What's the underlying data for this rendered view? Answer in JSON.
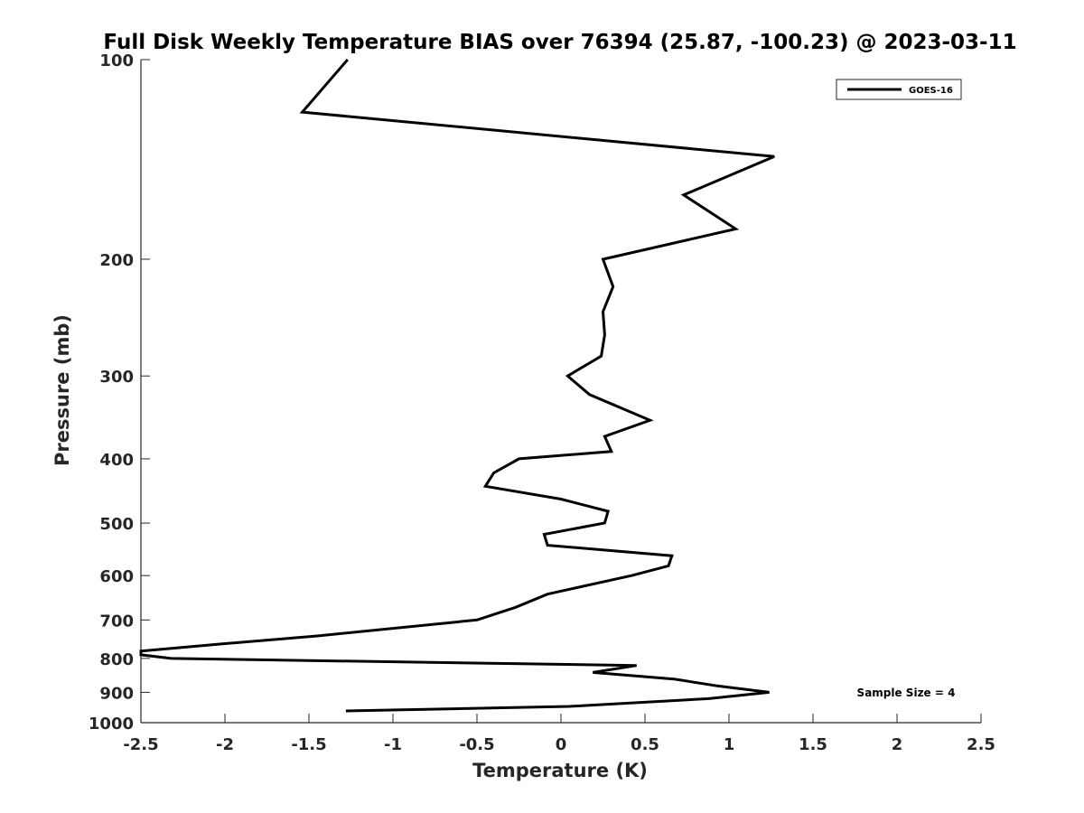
{
  "chart_data": {
    "type": "line",
    "title": "Full Disk Weekly Temperature BIAS over 76394 (25.87, -100.23) @ 2023-03-11",
    "xlabel": "Temperature (K)",
    "ylabel": "Pressure (mb)",
    "xlim": [
      -2.5,
      2.5
    ],
    "ylim": [
      100,
      1000
    ],
    "y_scale": "log",
    "y_reversed": true,
    "x_ticks": [
      -2.5,
      -2,
      -1.5,
      -1,
      -0.5,
      0,
      0.5,
      1,
      1.5,
      2,
      2.5
    ],
    "x_tick_labels": [
      "-2.5",
      "-2",
      "-1.5",
      "-1",
      "-0.5",
      "0",
      "0.5",
      "1",
      "1.5",
      "2",
      "2.5"
    ],
    "y_ticks": [
      100,
      200,
      300,
      400,
      500,
      600,
      700,
      800,
      900,
      1000
    ],
    "y_tick_labels": [
      "100",
      "200",
      "300",
      "400",
      "500",
      "600",
      "700",
      "800",
      "900",
      "1000"
    ],
    "grid": false,
    "legend": {
      "position": "top-right"
    },
    "series": [
      {
        "name": "GOES-16",
        "color": "#000000",
        "points": [
          {
            "x": -1.27,
            "p": 100
          },
          {
            "x": -1.54,
            "p": 120
          },
          {
            "x": 1.27,
            "p": 140
          },
          {
            "x": 0.73,
            "p": 160
          },
          {
            "x": 1.04,
            "p": 180
          },
          {
            "x": 0.25,
            "p": 200
          },
          {
            "x": 0.31,
            "p": 220
          },
          {
            "x": 0.25,
            "p": 240
          },
          {
            "x": 0.26,
            "p": 260
          },
          {
            "x": 0.24,
            "p": 280
          },
          {
            "x": 0.04,
            "p": 300
          },
          {
            "x": 0.17,
            "p": 320
          },
          {
            "x": 0.53,
            "p": 350
          },
          {
            "x": 0.26,
            "p": 370
          },
          {
            "x": 0.3,
            "p": 390
          },
          {
            "x": -0.25,
            "p": 400
          },
          {
            "x": -0.4,
            "p": 420
          },
          {
            "x": -0.45,
            "p": 440
          },
          {
            "x": 0.0,
            "p": 460
          },
          {
            "x": 0.28,
            "p": 480
          },
          {
            "x": 0.26,
            "p": 500
          },
          {
            "x": -0.1,
            "p": 520
          },
          {
            "x": -0.08,
            "p": 540
          },
          {
            "x": 0.66,
            "p": 560
          },
          {
            "x": 0.64,
            "p": 580
          },
          {
            "x": 0.42,
            "p": 600
          },
          {
            "x": -0.08,
            "p": 640
          },
          {
            "x": -0.27,
            "p": 670
          },
          {
            "x": -0.5,
            "p": 700
          },
          {
            "x": -1.45,
            "p": 740
          },
          {
            "x": -2.0,
            "p": 760
          },
          {
            "x": -2.5,
            "p": 780
          },
          {
            "x": -2.5,
            "p": 790
          },
          {
            "x": -2.32,
            "p": 800
          },
          {
            "x": 0.45,
            "p": 820
          },
          {
            "x": 0.19,
            "p": 840
          },
          {
            "x": 0.68,
            "p": 860
          },
          {
            "x": 0.93,
            "p": 880
          },
          {
            "x": 1.24,
            "p": 900
          },
          {
            "x": 0.88,
            "p": 920
          },
          {
            "x": 0.05,
            "p": 945
          },
          {
            "x": -1.28,
            "p": 960
          }
        ]
      }
    ],
    "annotations": [
      {
        "text": "Sample Size = 4"
      }
    ]
  }
}
